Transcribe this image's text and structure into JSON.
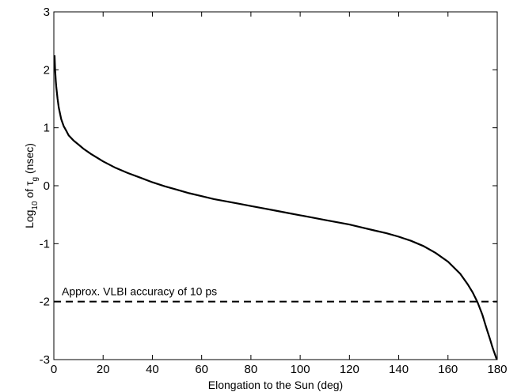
{
  "chart_data": {
    "type": "line",
    "xlabel": "Elongation to the Sun (deg)",
    "ylabel": {
      "base": "Log",
      "sub": "10",
      "mid": " of ",
      "sym": "τ",
      "sym_sub": "g",
      "unit": " (nsec)"
    },
    "xlim": [
      0,
      180
    ],
    "ylim": [
      -3,
      3
    ],
    "xticks": [
      0,
      20,
      40,
      60,
      80,
      100,
      120,
      140,
      160,
      180
    ],
    "yticks": [
      -3,
      -2,
      -1,
      0,
      1,
      2,
      3
    ],
    "grid": false,
    "series": [
      {
        "x": [
          0.3,
          0.5,
          0.8,
          1,
          1.5,
          2,
          3,
          4,
          5,
          6,
          8,
          10,
          12,
          15,
          20,
          25,
          30,
          35,
          40,
          45,
          50,
          55,
          60,
          65,
          70,
          75,
          80,
          85,
          90,
          95,
          100,
          105,
          110,
          115,
          120,
          125,
          130,
          135,
          140,
          145,
          150,
          155,
          160,
          165,
          168,
          170,
          172,
          174,
          175,
          176,
          177,
          178,
          178.5,
          179,
          179.5,
          179.8
        ],
        "y": [
          2.25,
          2.0,
          1.8,
          1.7,
          1.5,
          1.35,
          1.15,
          1.03,
          0.95,
          0.87,
          0.78,
          0.71,
          0.64,
          0.55,
          0.42,
          0.31,
          0.22,
          0.14,
          0.06,
          -0.01,
          -0.07,
          -0.13,
          -0.18,
          -0.23,
          -0.27,
          -0.31,
          -0.35,
          -0.39,
          -0.43,
          -0.47,
          -0.51,
          -0.55,
          -0.59,
          -0.63,
          -0.67,
          -0.72,
          -0.77,
          -0.82,
          -0.88,
          -0.95,
          -1.04,
          -1.16,
          -1.31,
          -1.52,
          -1.7,
          -1.84,
          -2.01,
          -2.23,
          -2.37,
          -2.51,
          -2.64,
          -2.78,
          -2.84,
          -2.9,
          -2.96,
          -3.0
        ]
      }
    ],
    "reference_line": {
      "y": -2,
      "style": "dashed",
      "label": "Approx. VLBI accuracy of 10 ps"
    }
  }
}
